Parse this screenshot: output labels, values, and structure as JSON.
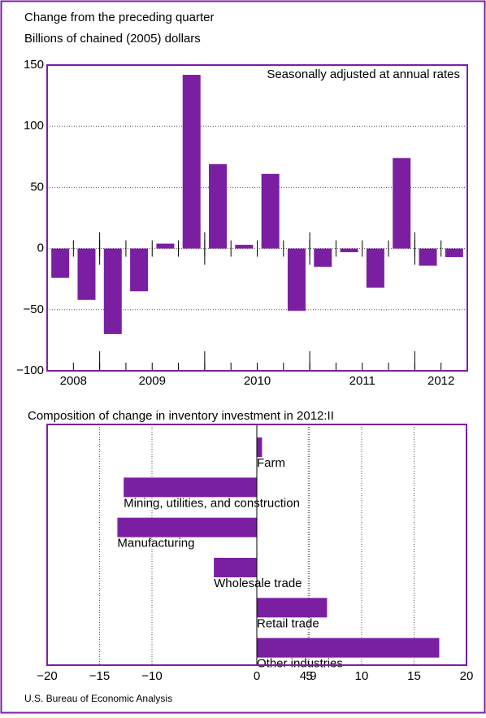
{
  "chart_data": [
    {
      "type": "bar",
      "title": "Change from the preceding quarter",
      "subtitle": "Billions of chained (2005) dollars",
      "annotation": "Seasonally adjusted at annual rates",
      "categories": [
        null,
        null,
        null,
        null,
        null,
        null,
        null,
        null,
        null,
        null,
        null,
        null,
        null,
        null,
        null,
        null
      ],
      "groups": [
        {
          "label": "2008",
          "count": 2
        },
        {
          "label": "2009",
          "count": 4
        },
        {
          "label": "2010",
          "count": 4
        },
        {
          "label": "2011",
          "count": 4
        },
        {
          "label": "2012",
          "count": 2
        }
      ],
      "values": [
        -24,
        -42,
        -70,
        -35,
        4,
        142,
        69,
        3,
        61,
        -51,
        -15,
        -3,
        -32,
        74,
        -14,
        -7
      ],
      "color": "#7b1fa2",
      "ylim": [
        -100,
        150
      ],
      "yticks": [
        {
          "value": -100,
          "label": "−100"
        },
        {
          "value": -50,
          "label": "−50"
        },
        0,
        50,
        100,
        150
      ],
      "grid": true
    },
    {
      "type": "hbar",
      "title": "Composition of change in inventory investment in 2012:II",
      "categories": [
        "Farm",
        "Mining, utilities, and construction",
        "Manufacturing",
        "Wholesale trade",
        "Retail trade",
        "Other industries"
      ],
      "values": [
        0.5,
        -12.7,
        -13.3,
        -4.1,
        6.7,
        17.4
      ],
      "color": "#7b1fa2",
      "xlim": [
        -20,
        20
      ],
      "xticks": [
        {
          "value": -20,
          "label": "−20"
        },
        {
          "value": -15,
          "label": "−15"
        },
        {
          "value": -10,
          "label": "−10"
        },
        4.9,
        0,
        5,
        10,
        15,
        20
      ],
      "grid": true
    }
  ],
  "source": "U.S. Bureau of Economic Analysis"
}
